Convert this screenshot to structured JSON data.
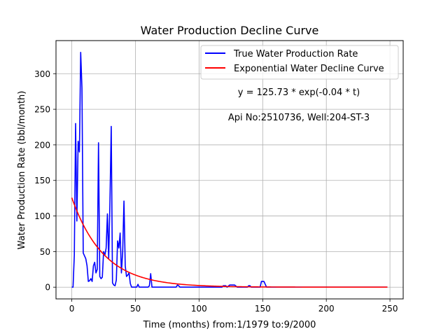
{
  "chart_data": {
    "type": "line",
    "title": "Water Production Decline Curve",
    "xlabel": "Time (months) from:1/1979 to:9/2000",
    "ylabel": "Water Production Rate (bbl/month)",
    "xlim": [
      -12.4,
      260.4
    ],
    "ylim": [
      -16.5,
      346.5
    ],
    "xticks": [
      0,
      50,
      100,
      150,
      200,
      250
    ],
    "yticks": [
      0,
      50,
      100,
      150,
      200,
      250,
      300
    ],
    "grid": true,
    "legend_position": "top-right",
    "annotations": [
      "y = 125.73 * exp(-0.04 * t)",
      "Api No:2510736, Well:204-ST-3"
    ],
    "series": [
      {
        "name": "True Water Production Rate",
        "color": "#0000ff",
        "points": [
          [
            0,
            0
          ],
          [
            1,
            0
          ],
          [
            2,
            45
          ],
          [
            3,
            230
          ],
          [
            4,
            93
          ],
          [
            5,
            205
          ],
          [
            6,
            190
          ],
          [
            7,
            330
          ],
          [
            8,
            280
          ],
          [
            9,
            48
          ],
          [
            10,
            44
          ],
          [
            11,
            40
          ],
          [
            12,
            30
          ],
          [
            13,
            8
          ],
          [
            14,
            9
          ],
          [
            15,
            12
          ],
          [
            16,
            8
          ],
          [
            17,
            30
          ],
          [
            18,
            35
          ],
          [
            19,
            20
          ],
          [
            20,
            25
          ],
          [
            21,
            203
          ],
          [
            22,
            15
          ],
          [
            23,
            12
          ],
          [
            24,
            14
          ],
          [
            25,
            50
          ],
          [
            26,
            45
          ],
          [
            27,
            55
          ],
          [
            28,
            103
          ],
          [
            29,
            40
          ],
          [
            30,
            120
          ],
          [
            31,
            226
          ],
          [
            32,
            6
          ],
          [
            33,
            3
          ],
          [
            34,
            2
          ],
          [
            35,
            10
          ],
          [
            36,
            65
          ],
          [
            37,
            55
          ],
          [
            38,
            76
          ],
          [
            39,
            20
          ],
          [
            40,
            50
          ],
          [
            41,
            121
          ],
          [
            42,
            30
          ],
          [
            43,
            15
          ],
          [
            44,
            17
          ],
          [
            45,
            20
          ],
          [
            46,
            5
          ],
          [
            47,
            0
          ],
          [
            50,
            0
          ],
          [
            51,
            0
          ],
          [
            52,
            4
          ],
          [
            53,
            0
          ],
          [
            60,
            0
          ],
          [
            61,
            2
          ],
          [
            62,
            19
          ],
          [
            63,
            0
          ],
          [
            70,
            0
          ],
          [
            82,
            0
          ],
          [
            83,
            3
          ],
          [
            84,
            2
          ],
          [
            85,
            0
          ],
          [
            100,
            0
          ],
          [
            118,
            0
          ],
          [
            119,
            2
          ],
          [
            121,
            2
          ],
          [
            122,
            0
          ],
          [
            124,
            3
          ],
          [
            128,
            3
          ],
          [
            130,
            0
          ],
          [
            138,
            0
          ],
          [
            139,
            2
          ],
          [
            140,
            2
          ],
          [
            141,
            0
          ],
          [
            148,
            0
          ],
          [
            149,
            8
          ],
          [
            151,
            8
          ],
          [
            153,
            0
          ],
          [
            248,
            0
          ]
        ]
      },
      {
        "name": "Exponential Water Decline Curve",
        "color": "#ff0000",
        "model": {
          "a": 125.73,
          "b": 0.04,
          "t_start": 0,
          "t_end": 248
        }
      }
    ]
  }
}
